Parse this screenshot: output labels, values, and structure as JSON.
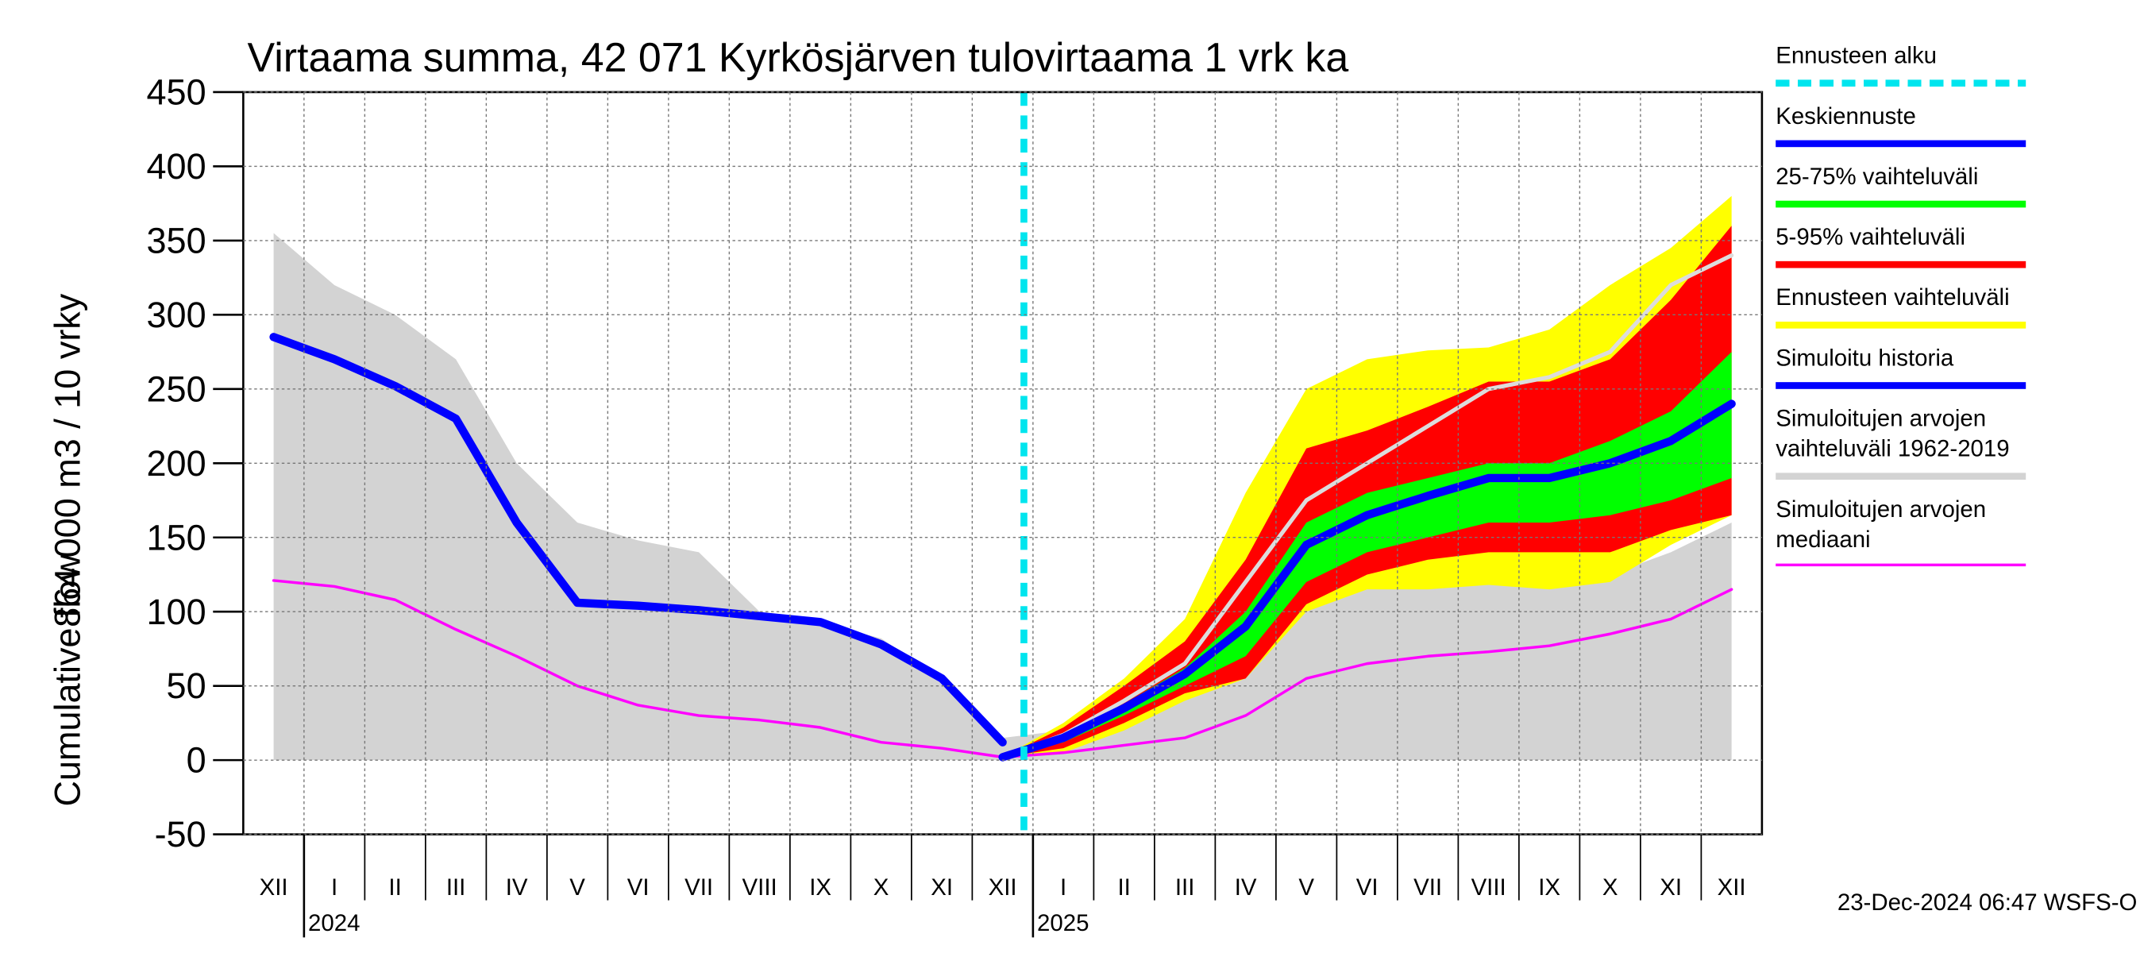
{
  "chart_data": {
    "type": "area",
    "title": "Virtaama summa, 42 071 Kyrkösjärven tulovirtaama 1 vrk ka",
    "y_label": "864 000 m3 / 10 vrky",
    "y_label_2": "Cumulative flow",
    "footer": "23-Dec-2024 06:47 WSFS-O",
    "categories": [
      "XII",
      "I",
      "II",
      "III",
      "IV",
      "V",
      "VI",
      "VII",
      "VIII",
      "IX",
      "X",
      "XI",
      "XII",
      "I",
      "II",
      "III",
      "IV",
      "V",
      "VI",
      "VII",
      "VIII",
      "IX",
      "X",
      "XI",
      "XII"
    ],
    "year_labels": [
      "2024",
      "2025"
    ],
    "ylim": [
      -50,
      450
    ],
    "yticks": [
      -50,
      0,
      50,
      100,
      150,
      200,
      250,
      300,
      350,
      400,
      450
    ],
    "grid": true,
    "series": [
      {
        "name": "Ennusteen alku",
        "color": "#00e5ee",
        "kind": "marker"
      },
      {
        "name": "Keskiennuste",
        "color": "#0000ff",
        "kind": "line",
        "width": 6,
        "values": [
          null,
          null,
          null,
          null,
          null,
          null,
          null,
          null,
          null,
          null,
          null,
          null,
          2,
          15,
          35,
          58,
          90,
          145,
          165,
          178,
          190,
          190,
          200,
          215,
          240
        ]
      },
      {
        "name": "25-75% vaihteluväli",
        "color": "#00ff00",
        "kind": "band",
        "values": [
          null,
          null,
          null,
          null,
          null,
          null,
          null,
          null,
          null,
          null,
          null,
          null,
          2,
          18,
          38,
          62,
          100,
          160,
          180,
          190,
          200,
          200,
          215,
          235,
          275
        ],
        "lower": [
          null,
          null,
          null,
          null,
          null,
          null,
          null,
          null,
          null,
          null,
          null,
          null,
          2,
          12,
          30,
          50,
          70,
          120,
          140,
          150,
          160,
          160,
          165,
          175,
          190
        ]
      },
      {
        "name": "5-95% vaihteluväli",
        "color": "#ff0000",
        "kind": "band",
        "values": [
          null,
          null,
          null,
          null,
          null,
          null,
          null,
          null,
          null,
          null,
          null,
          null,
          2,
          22,
          50,
          80,
          135,
          210,
          222,
          238,
          255,
          255,
          270,
          310,
          360
        ],
        "lower": [
          null,
          null,
          null,
          null,
          null,
          null,
          null,
          null,
          null,
          null,
          null,
          null,
          2,
          8,
          25,
          45,
          55,
          105,
          125,
          135,
          140,
          140,
          140,
          155,
          165
        ]
      },
      {
        "name": "Ennusteen vaihteluväli",
        "color": "#ffff00",
        "kind": "band",
        "values": [
          null,
          null,
          null,
          null,
          null,
          null,
          null,
          null,
          null,
          null,
          null,
          null,
          2,
          25,
          55,
          95,
          180,
          250,
          270,
          276,
          278,
          290,
          320,
          345,
          380
        ],
        "lower": [
          null,
          null,
          null,
          null,
          null,
          null,
          null,
          null,
          null,
          null,
          null,
          null,
          2,
          5,
          20,
          40,
          55,
          100,
          115,
          115,
          118,
          115,
          120,
          145,
          165
        ]
      },
      {
        "name": "Simuloitu historia",
        "color": "#0000ff",
        "kind": "line",
        "width": 6,
        "values": [
          285,
          270,
          252,
          230,
          160,
          106,
          104,
          101,
          97,
          93,
          78,
          55,
          12,
          null,
          null,
          null,
          null,
          null,
          null,
          null,
          null,
          null,
          null,
          null,
          null
        ]
      },
      {
        "name": "Simuloitujen arvojen vaihteluväli 1962-2019",
        "color": "#d3d3d3",
        "kind": "band",
        "values": [
          355,
          320,
          300,
          270,
          200,
          160,
          148,
          140,
          100,
          93,
          82,
          55,
          15,
          20,
          35,
          45,
          70,
          110,
          120,
          120,
          120,
          120,
          125,
          140,
          160
        ],
        "lower": [
          0,
          0,
          0,
          0,
          0,
          0,
          0,
          0,
          0,
          0,
          0,
          0,
          0,
          0,
          0,
          0,
          0,
          0,
          0,
          0,
          0,
          0,
          0,
          0,
          0
        ]
      },
      {
        "name": "Simuloitujen arvojen mediaani",
        "color": "#ff00ff",
        "kind": "line",
        "width": 2,
        "values": [
          121,
          117,
          108,
          88,
          70,
          50,
          37,
          30,
          27,
          22,
          12,
          8,
          2,
          5,
          10,
          15,
          30,
          55,
          65,
          70,
          73,
          77,
          85,
          95,
          115
        ]
      },
      {
        "color": "#dcdcdc",
        "kind": "line",
        "width": 3,
        "values": [
          null,
          null,
          null,
          null,
          null,
          null,
          null,
          null,
          null,
          null,
          null,
          null,
          2,
          17,
          40,
          65,
          120,
          175,
          200,
          225,
          250,
          258,
          275,
          320,
          340
        ]
      }
    ]
  }
}
